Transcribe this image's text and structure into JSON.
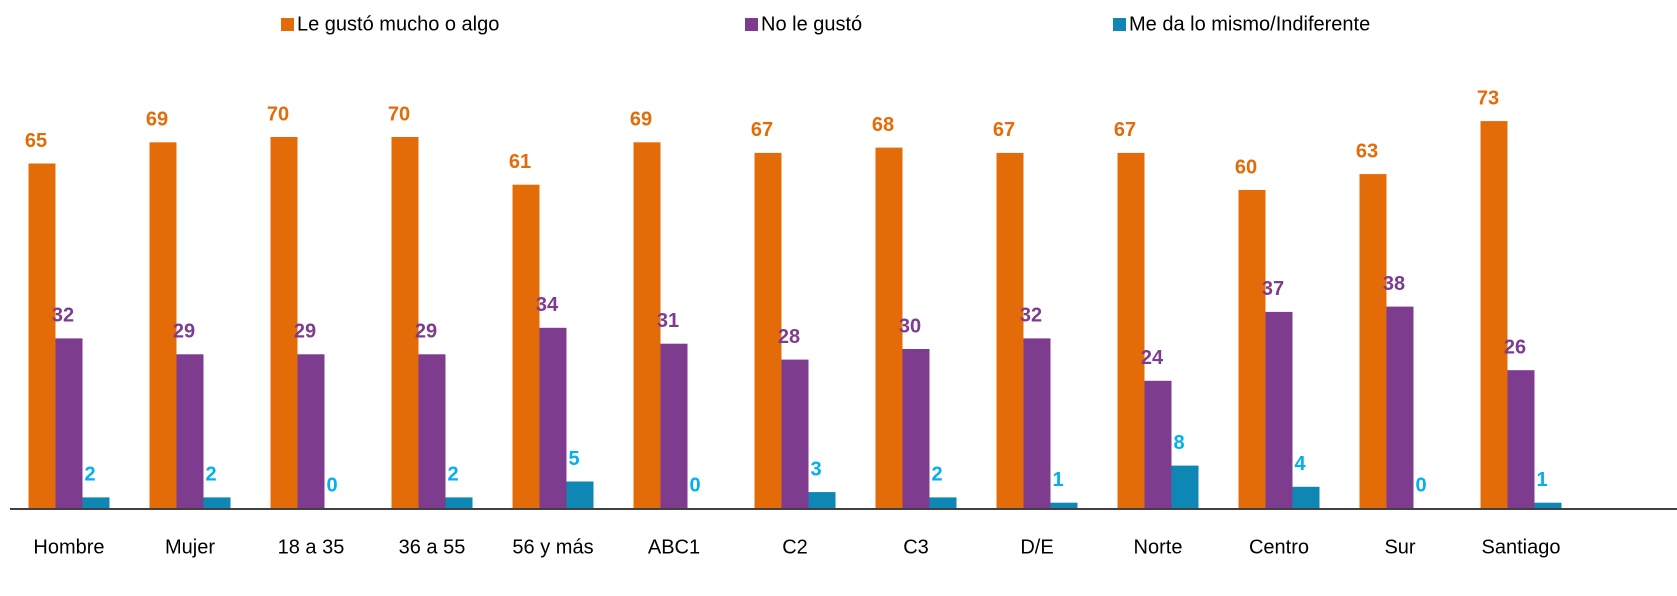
{
  "chart_data": {
    "type": "bar",
    "categories": [
      "Hombre",
      "Mujer",
      "18 a 35",
      "36 a 55",
      "56 y más",
      "ABC1",
      "C2",
      "C3",
      "D/E",
      "Norte",
      "Centro",
      "Sur",
      "Santiago"
    ],
    "series": [
      {
        "name": "Le gustó mucho o algo",
        "color": "#e36c09",
        "label_color": "#e36c09",
        "values": [
          65,
          69,
          70,
          70,
          61,
          69,
          67,
          68,
          67,
          67,
          60,
          63,
          73
        ]
      },
      {
        "name": "No le gustó",
        "color": "#7d3c8e",
        "label_color": "#7d3c8e",
        "values": [
          32,
          29,
          29,
          29,
          34,
          31,
          28,
          30,
          32,
          24,
          37,
          38,
          26
        ]
      },
      {
        "name": "Me da lo mismo/Indiferente",
        "color": "#0e87b5",
        "label_color": "#00b0f0",
        "values": [
          2,
          2,
          0,
          2,
          5,
          0,
          3,
          2,
          1,
          8,
          4,
          0,
          1
        ]
      }
    ],
    "ylim": [
      0,
      80
    ],
    "legend": "top"
  }
}
